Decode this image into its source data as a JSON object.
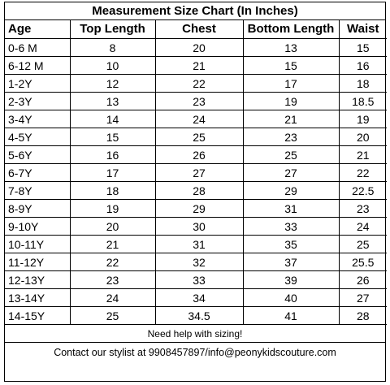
{
  "chart_title": "Measurement Size Chart (In Inches)",
  "columns": [
    "Age",
    "Top Length",
    "Chest",
    "Bottom Length",
    "Waist"
  ],
  "rows": [
    [
      "0-6 M",
      "8",
      "20",
      "13",
      "15"
    ],
    [
      "6-12 M",
      "10",
      "21",
      "15",
      "16"
    ],
    [
      "1-2Y",
      "12",
      "22",
      "17",
      "18"
    ],
    [
      "2-3Y",
      "13",
      "23",
      "19",
      "18.5"
    ],
    [
      "3-4Y",
      "14",
      "24",
      "21",
      "19"
    ],
    [
      "4-5Y",
      "15",
      "25",
      "23",
      "20"
    ],
    [
      "5-6Y",
      "16",
      "26",
      "25",
      "21"
    ],
    [
      "6-7Y",
      "17",
      "27",
      "27",
      "22"
    ],
    [
      "7-8Y",
      "18",
      "28",
      "29",
      "22.5"
    ],
    [
      "8-9Y",
      "19",
      "29",
      "31",
      "23"
    ],
    [
      "9-10Y",
      "20",
      "30",
      "33",
      "24"
    ],
    [
      "10-11Y",
      "21",
      "31",
      "35",
      "25"
    ],
    [
      "11-12Y",
      "22",
      "32",
      "37",
      "25.5"
    ],
    [
      "12-13Y",
      "23",
      "33",
      "39",
      "26"
    ],
    [
      "13-14Y",
      "24",
      "34",
      "40",
      "27"
    ],
    [
      "14-15Y",
      "25",
      "34.5",
      "41",
      "28"
    ]
  ],
  "help_text": "Need help with sizing!",
  "contact_text": "Contact our stylist at 9908457897/info@peonykidscouture.com"
}
